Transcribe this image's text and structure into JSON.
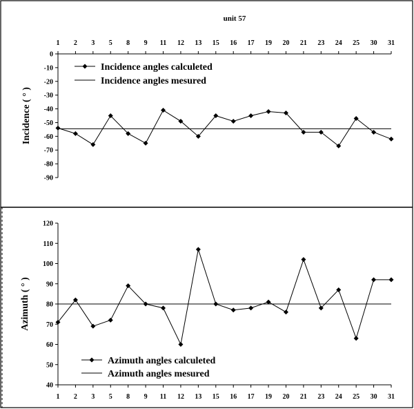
{
  "chart_data": [
    {
      "type": "line",
      "title": "unit 57",
      "ylabel": "Incidence ( ° )",
      "xlabel": "",
      "ylim": [
        -90,
        0
      ],
      "yticks": [
        0,
        -10,
        -20,
        -30,
        -40,
        -50,
        -60,
        -70,
        -80,
        -90
      ],
      "categories": [
        "1",
        "2",
        "3",
        "5",
        "8",
        "9",
        "11",
        "12",
        "13",
        "15",
        "16",
        "17",
        "19",
        "20",
        "21",
        "23",
        "24",
        "25",
        "30",
        "31"
      ],
      "x_axis_position": "top",
      "legend_position": "top-left",
      "grid": false,
      "series": [
        {
          "name": "Incidence angles calculeted",
          "marker": "diamond",
          "values": [
            -54,
            -58,
            -66,
            -45,
            -58,
            -65,
            -41,
            -49,
            -60,
            -45,
            -49,
            -45,
            -42,
            -43,
            -57,
            -57,
            -67,
            -47,
            -57,
            -62
          ]
        },
        {
          "name": "Incidence angles mesured",
          "marker": "none",
          "values": [
            -54.5,
            -54.5,
            -54.5,
            -54.5,
            -54.5,
            -54.5,
            -54.5,
            -54.5,
            -54.5,
            -54.5,
            -54.5,
            -54.5,
            -54.5,
            -54.5,
            -54.5,
            -54.5,
            -54.5,
            -54.5,
            -54.5,
            -54.5
          ]
        }
      ]
    },
    {
      "type": "line",
      "title": "",
      "ylabel": "Azimuth ( ° )",
      "xlabel": "",
      "ylim": [
        40,
        120
      ],
      "yticks": [
        40,
        50,
        60,
        70,
        80,
        90,
        100,
        110,
        120
      ],
      "categories": [
        "1",
        "2",
        "3",
        "5",
        "8",
        "9",
        "11",
        "12",
        "13",
        "15",
        "16",
        "17",
        "19",
        "20",
        "21",
        "23",
        "24",
        "25",
        "30",
        "31"
      ],
      "x_axis_position": "bottom",
      "legend_position": "bottom-left",
      "grid": false,
      "series": [
        {
          "name": "Azimuth angles calculeted",
          "marker": "diamond",
          "values": [
            71,
            82,
            69,
            72,
            89,
            80,
            78,
            60,
            107,
            80,
            77,
            78,
            81,
            76,
            102,
            78,
            87,
            63,
            92,
            92
          ]
        },
        {
          "name": "Azimuth angles mesured",
          "marker": "none",
          "values": [
            80,
            80,
            80,
            80,
            80,
            80,
            80,
            80,
            80,
            80,
            80,
            80,
            80,
            80,
            80,
            80,
            80,
            80,
            80,
            80
          ]
        }
      ]
    }
  ]
}
